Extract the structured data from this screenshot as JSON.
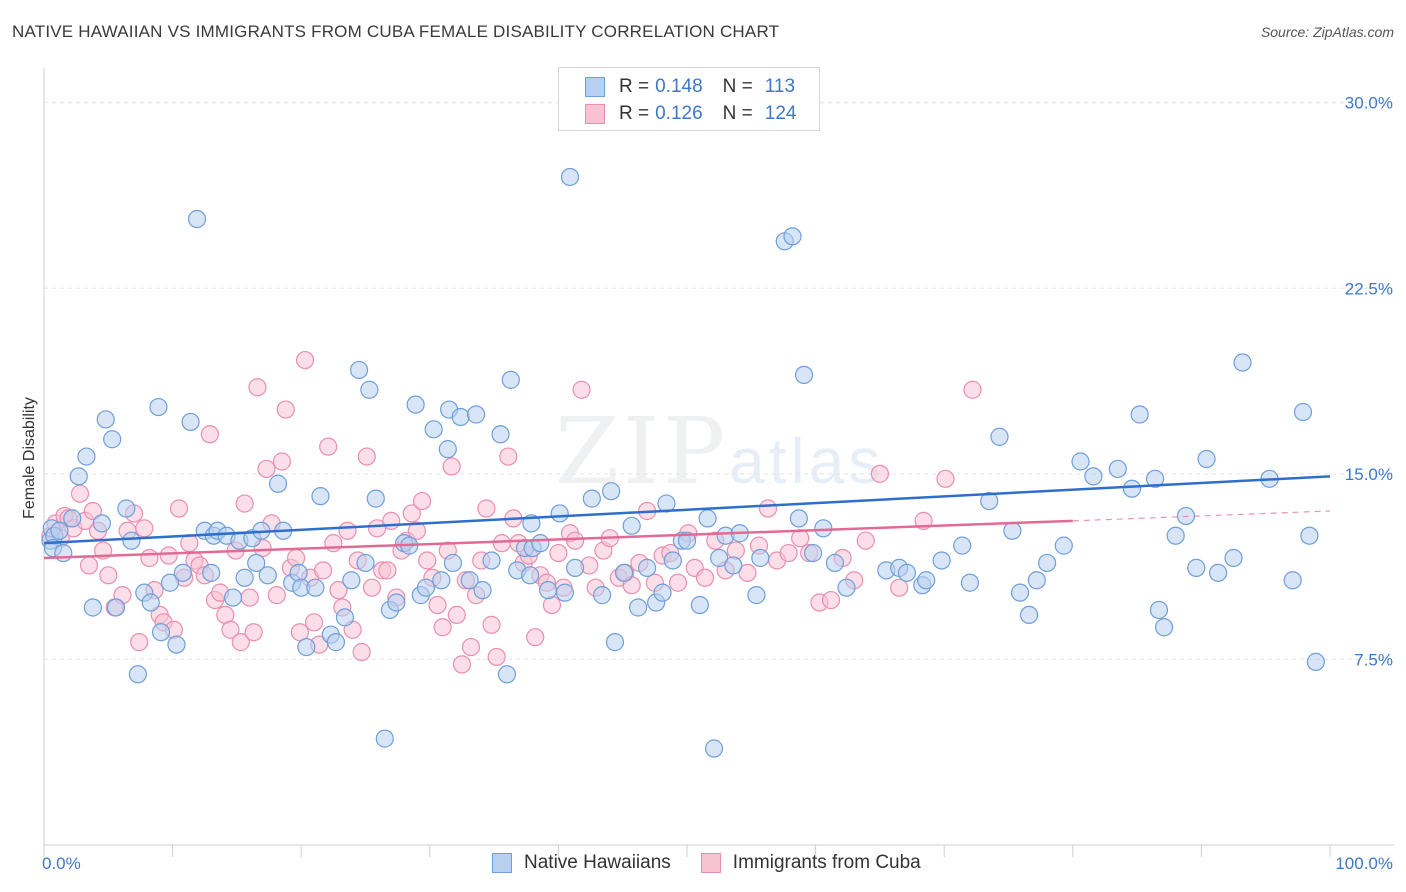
{
  "title": "NATIVE HAWAIIAN VS IMMIGRANTS FROM CUBA FEMALE DISABILITY CORRELATION CHART",
  "source": "Source: ZipAtlas.com",
  "watermark": {
    "zip": "ZIP",
    "atlas": "atlas"
  },
  "legend": {
    "series1": {
      "r_label": "R =",
      "r_value": "0.148",
      "n_label": "N =",
      "n_value": "113"
    },
    "series2": {
      "r_label": "R =",
      "r_value": "0.126",
      "n_label": "N =",
      "n_value": "124"
    }
  },
  "colors": {
    "blue_fill": "#b8cff0",
    "blue_stroke": "#6f9fd8",
    "blue_line": "#2f6fcc",
    "pink_fill": "#f7c3d3",
    "pink_stroke": "#e98fb0",
    "pink_line": "#e26a95"
  },
  "chart_data": {
    "type": "scatter",
    "title": "NATIVE HAWAIIAN VS IMMIGRANTS FROM CUBA FEMALE DISABILITY CORRELATION CHART",
    "xlabel": "",
    "ylabel": "Female Disability",
    "xlim": [
      0,
      100
    ],
    "ylim": [
      0,
      31
    ],
    "x_tick_labels": [
      "0.0%",
      "100.0%"
    ],
    "y_ticks": [
      7.5,
      15.0,
      22.5,
      30.0
    ],
    "y_tick_labels": [
      "7.5%",
      "15.0%",
      "22.5%",
      "30.0%"
    ],
    "legend_position": "top-center",
    "series": [
      {
        "name": "Native Hawaiians",
        "r": 0.148,
        "n": 113,
        "trend": {
          "x": [
            0,
            100
          ],
          "y": [
            12.2,
            14.9
          ]
        },
        "points": [
          [
            0.5,
            12.3
          ],
          [
            0.6,
            12.8
          ],
          [
            0.8,
            12.5
          ],
          [
            0.7,
            12.0
          ],
          [
            1.2,
            12.7
          ],
          [
            1.5,
            11.8
          ],
          [
            2.2,
            13.2
          ],
          [
            2.7,
            14.9
          ],
          [
            3.3,
            15.7
          ],
          [
            3.8,
            9.6
          ],
          [
            4.5,
            13.0
          ],
          [
            4.8,
            17.2
          ],
          [
            5.3,
            16.4
          ],
          [
            5.6,
            9.6
          ],
          [
            6.4,
            13.6
          ],
          [
            6.8,
            12.3
          ],
          [
            7.3,
            6.9
          ],
          [
            7.8,
            10.2
          ],
          [
            8.3,
            9.8
          ],
          [
            8.9,
            17.7
          ],
          [
            9.1,
            8.6
          ],
          [
            9.8,
            10.6
          ],
          [
            10.3,
            8.1
          ],
          [
            10.8,
            11.0
          ],
          [
            11.4,
            17.1
          ],
          [
            11.9,
            25.3
          ],
          [
            12.5,
            12.7
          ],
          [
            13.0,
            11.0
          ],
          [
            13.2,
            12.5
          ],
          [
            13.5,
            12.7
          ],
          [
            14.2,
            12.5
          ],
          [
            14.7,
            10.0
          ],
          [
            15.2,
            12.3
          ],
          [
            15.6,
            10.8
          ],
          [
            16.2,
            12.4
          ],
          [
            16.5,
            11.4
          ],
          [
            16.9,
            12.7
          ],
          [
            17.4,
            10.9
          ],
          [
            18.2,
            14.6
          ],
          [
            18.6,
            12.7
          ],
          [
            19.3,
            10.6
          ],
          [
            19.8,
            11.0
          ],
          [
            20.0,
            10.4
          ],
          [
            20.4,
            8.0
          ],
          [
            21.1,
            10.4
          ],
          [
            21.5,
            14.1
          ],
          [
            22.3,
            8.5
          ],
          [
            22.7,
            8.2
          ],
          [
            23.4,
            9.2
          ],
          [
            23.9,
            10.7
          ],
          [
            24.5,
            19.2
          ],
          [
            25.0,
            11.4
          ],
          [
            25.3,
            18.4
          ],
          [
            25.8,
            14.0
          ],
          [
            26.5,
            4.3
          ],
          [
            26.9,
            9.5
          ],
          [
            27.4,
            9.8
          ],
          [
            28.0,
            12.2
          ],
          [
            28.4,
            12.1
          ],
          [
            28.9,
            17.8
          ],
          [
            29.3,
            10.1
          ],
          [
            29.7,
            10.4
          ],
          [
            30.3,
            16.8
          ],
          [
            30.9,
            10.7
          ],
          [
            31.4,
            16.0
          ],
          [
            31.5,
            17.6
          ],
          [
            31.8,
            11.4
          ],
          [
            32.4,
            17.3
          ],
          [
            33.1,
            10.7
          ],
          [
            33.6,
            17.4
          ],
          [
            34.1,
            10.3
          ],
          [
            34.8,
            11.5
          ],
          [
            35.5,
            16.6
          ],
          [
            36.0,
            6.9
          ],
          [
            36.3,
            18.8
          ],
          [
            36.8,
            11.1
          ],
          [
            37.4,
            12.0
          ],
          [
            37.8,
            10.9
          ],
          [
            38.0,
            12.0
          ],
          [
            37.9,
            13.0
          ],
          [
            38.6,
            12.2
          ],
          [
            39.2,
            10.3
          ],
          [
            40.1,
            13.4
          ],
          [
            40.5,
            10.2
          ],
          [
            40.9,
            27.0
          ],
          [
            41.3,
            11.2
          ],
          [
            42.6,
            14.0
          ],
          [
            43.4,
            10.1
          ],
          [
            44.1,
            14.3
          ],
          [
            44.4,
            8.2
          ],
          [
            45.1,
            11.0
          ],
          [
            45.7,
            12.9
          ],
          [
            46.2,
            9.6
          ],
          [
            46.9,
            11.2
          ],
          [
            47.6,
            9.8
          ],
          [
            48.1,
            10.2
          ],
          [
            48.4,
            13.8
          ],
          [
            48.9,
            11.5
          ],
          [
            49.6,
            12.3
          ],
          [
            50.0,
            12.3
          ],
          [
            51.0,
            9.7
          ],
          [
            51.6,
            13.2
          ],
          [
            52.1,
            3.9
          ],
          [
            52.5,
            11.6
          ],
          [
            53.0,
            12.5
          ],
          [
            53.6,
            11.3
          ],
          [
            54.1,
            12.6
          ],
          [
            55.4,
            10.1
          ],
          [
            55.7,
            11.6
          ],
          [
            57.6,
            24.4
          ],
          [
            58.2,
            24.6
          ],
          [
            59.1,
            19.0
          ],
          [
            58.7,
            13.2
          ],
          [
            59.8,
            11.8
          ],
          [
            60.6,
            12.8
          ],
          [
            61.5,
            11.4
          ],
          [
            62.4,
            10.4
          ],
          [
            65.5,
            11.1
          ],
          [
            66.5,
            11.2
          ],
          [
            67.1,
            11.0
          ],
          [
            68.3,
            10.5
          ],
          [
            68.6,
            10.7
          ],
          [
            69.8,
            11.5
          ],
          [
            71.4,
            12.1
          ],
          [
            72.0,
            10.6
          ],
          [
            73.5,
            13.9
          ],
          [
            74.3,
            16.5
          ],
          [
            75.3,
            12.7
          ],
          [
            75.9,
            10.2
          ],
          [
            76.6,
            9.3
          ],
          [
            77.2,
            10.7
          ],
          [
            78.0,
            11.4
          ],
          [
            79.3,
            12.1
          ],
          [
            80.6,
            15.5
          ],
          [
            81.6,
            14.9
          ],
          [
            83.5,
            15.2
          ],
          [
            84.6,
            14.4
          ],
          [
            85.2,
            17.4
          ],
          [
            86.4,
            14.8
          ],
          [
            86.7,
            9.5
          ],
          [
            87.1,
            8.8
          ],
          [
            88.0,
            12.5
          ],
          [
            88.8,
            13.3
          ],
          [
            89.6,
            11.2
          ],
          [
            90.4,
            15.6
          ],
          [
            91.3,
            11.0
          ],
          [
            92.5,
            11.6
          ],
          [
            93.2,
            19.5
          ],
          [
            95.3,
            14.8
          ],
          [
            97.1,
            10.7
          ],
          [
            97.9,
            17.5
          ],
          [
            98.4,
            12.5
          ],
          [
            98.9,
            7.4
          ]
        ]
      },
      {
        "name": "Immigrants from Cuba",
        "r": 0.126,
        "n": 124,
        "trend": {
          "x": [
            0,
            80
          ],
          "y": [
            11.6,
            13.1
          ]
        },
        "trend_dashed": {
          "x": [
            80,
            100
          ],
          "y": [
            13.1,
            13.5
          ]
        },
        "points": [
          [
            0.5,
            12.5
          ],
          [
            0.9,
            13.0
          ],
          [
            1.3,
            12.4
          ],
          [
            1.6,
            13.3
          ],
          [
            1.9,
            13.2
          ],
          [
            2.3,
            12.8
          ],
          [
            2.8,
            14.2
          ],
          [
            3.2,
            13.1
          ],
          [
            3.5,
            11.3
          ],
          [
            3.8,
            13.5
          ],
          [
            4.2,
            12.7
          ],
          [
            4.6,
            11.9
          ],
          [
            5.0,
            10.9
          ],
          [
            5.5,
            9.6
          ],
          [
            6.1,
            10.1
          ],
          [
            6.5,
            12.7
          ],
          [
            7.0,
            13.4
          ],
          [
            7.4,
            8.2
          ],
          [
            7.8,
            12.8
          ],
          [
            8.2,
            11.6
          ],
          [
            8.6,
            10.3
          ],
          [
            9.0,
            9.3
          ],
          [
            9.3,
            9.0
          ],
          [
            9.7,
            11.7
          ],
          [
            10.1,
            8.7
          ],
          [
            10.5,
            13.6
          ],
          [
            10.9,
            10.8
          ],
          [
            11.3,
            12.2
          ],
          [
            11.7,
            11.5
          ],
          [
            12.1,
            11.3
          ],
          [
            12.5,
            10.9
          ],
          [
            12.9,
            16.6
          ],
          [
            13.3,
            9.9
          ],
          [
            13.7,
            10.2
          ],
          [
            14.1,
            9.3
          ],
          [
            14.5,
            8.7
          ],
          [
            14.9,
            11.9
          ],
          [
            15.3,
            8.2
          ],
          [
            15.6,
            13.8
          ],
          [
            16.0,
            10.0
          ],
          [
            16.3,
            8.6
          ],
          [
            16.6,
            18.5
          ],
          [
            17.0,
            12.0
          ],
          [
            17.3,
            15.2
          ],
          [
            17.7,
            13.0
          ],
          [
            18.1,
            10.1
          ],
          [
            18.5,
            15.5
          ],
          [
            18.8,
            17.6
          ],
          [
            19.2,
            11.2
          ],
          [
            19.6,
            11.6
          ],
          [
            19.9,
            8.6
          ],
          [
            20.3,
            19.6
          ],
          [
            20.7,
            10.8
          ],
          [
            21.0,
            9.0
          ],
          [
            21.4,
            8.1
          ],
          [
            21.7,
            11.1
          ],
          [
            22.1,
            16.1
          ],
          [
            22.5,
            12.2
          ],
          [
            22.9,
            10.3
          ],
          [
            23.2,
            9.6
          ],
          [
            23.6,
            12.7
          ],
          [
            24.0,
            8.7
          ],
          [
            24.4,
            11.5
          ],
          [
            24.7,
            7.8
          ],
          [
            25.1,
            15.7
          ],
          [
            25.5,
            10.4
          ],
          [
            25.9,
            12.8
          ],
          [
            26.3,
            11.1
          ],
          [
            26.7,
            11.1
          ],
          [
            27.0,
            13.1
          ],
          [
            27.4,
            10.0
          ],
          [
            27.8,
            11.9
          ],
          [
            28.2,
            12.3
          ],
          [
            28.6,
            13.4
          ],
          [
            29.0,
            12.7
          ],
          [
            29.4,
            13.9
          ],
          [
            29.8,
            11.5
          ],
          [
            30.2,
            10.8
          ],
          [
            30.6,
            9.7
          ],
          [
            31.0,
            8.8
          ],
          [
            31.4,
            11.9
          ],
          [
            31.7,
            15.3
          ],
          [
            32.1,
            9.3
          ],
          [
            32.5,
            7.3
          ],
          [
            32.8,
            10.7
          ],
          [
            33.2,
            8.0
          ],
          [
            33.6,
            10.1
          ],
          [
            34.0,
            11.5
          ],
          [
            34.4,
            13.6
          ],
          [
            34.8,
            8.9
          ],
          [
            35.2,
            7.6
          ],
          [
            35.6,
            12.2
          ],
          [
            36.1,
            15.7
          ],
          [
            36.5,
            13.2
          ],
          [
            36.9,
            12.2
          ],
          [
            37.3,
            11.4
          ],
          [
            37.7,
            11.7
          ],
          [
            38.2,
            8.4
          ],
          [
            38.6,
            10.9
          ],
          [
            39.1,
            10.6
          ],
          [
            39.5,
            9.7
          ],
          [
            40.0,
            11.8
          ],
          [
            40.4,
            10.4
          ],
          [
            40.9,
            12.6
          ],
          [
            41.3,
            12.3
          ],
          [
            41.8,
            18.4
          ],
          [
            42.4,
            11.3
          ],
          [
            42.9,
            10.4
          ],
          [
            43.5,
            11.9
          ],
          [
            44.0,
            12.4
          ],
          [
            44.7,
            10.8
          ],
          [
            45.2,
            11.0
          ],
          [
            45.7,
            10.5
          ],
          [
            46.3,
            11.4
          ],
          [
            46.9,
            13.5
          ],
          [
            47.5,
            10.6
          ],
          [
            48.1,
            11.7
          ],
          [
            48.7,
            11.8
          ],
          [
            49.3,
            10.6
          ],
          [
            50.1,
            12.6
          ],
          [
            50.6,
            11.2
          ],
          [
            51.4,
            10.8
          ],
          [
            52.2,
            12.3
          ],
          [
            53.0,
            11.1
          ],
          [
            53.8,
            11.9
          ],
          [
            54.7,
            11.0
          ],
          [
            55.6,
            12.1
          ],
          [
            56.3,
            13.6
          ],
          [
            57.0,
            11.5
          ],
          [
            57.9,
            11.8
          ],
          [
            58.8,
            12.4
          ],
          [
            59.5,
            11.8
          ],
          [
            60.3,
            9.8
          ],
          [
            61.2,
            9.9
          ],
          [
            62.1,
            11.6
          ],
          [
            63.0,
            10.7
          ],
          [
            63.9,
            12.3
          ],
          [
            65.0,
            15.0
          ],
          [
            66.5,
            10.4
          ],
          [
            68.4,
            13.1
          ],
          [
            70.1,
            14.8
          ],
          [
            72.2,
            18.4
          ]
        ]
      }
    ]
  }
}
